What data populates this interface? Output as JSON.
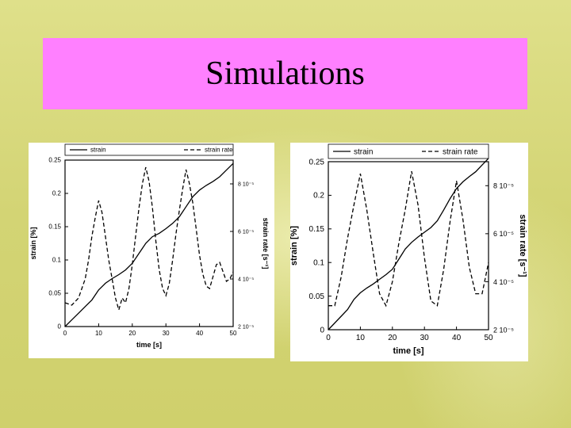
{
  "title": "Simulations",
  "chart_data": [
    {
      "type": "line",
      "title": "",
      "xlabel": "time [s]",
      "ylabel": "strain [%]",
      "y2label": "strain rate [s⁻¹]",
      "xlim": [
        0,
        50
      ],
      "ylim": [
        0,
        0.25
      ],
      "y2lim": [
        2e-05,
        9e-05
      ],
      "x_ticks": [
        "0",
        "10",
        "20",
        "30",
        "40",
        "50"
      ],
      "y_ticks": [
        "0",
        "0.05",
        "0.1",
        "0.15",
        "0.2",
        "0.25"
      ],
      "y2_ticks": [
        "2 10⁻⁵",
        "4 10⁻⁵",
        "6 10⁻⁵",
        "8 10⁻⁵"
      ],
      "legend_position": "top",
      "grid": false,
      "series": [
        {
          "name": "strain",
          "axis": "left",
          "style": "solid",
          "x": [
            0,
            2,
            4,
            6,
            8,
            10,
            12,
            14,
            16,
            18,
            20,
            22,
            24,
            26,
            28,
            30,
            32,
            34,
            36,
            38,
            40,
            42,
            44,
            46,
            48,
            50
          ],
          "values": [
            0.0,
            0.01,
            0.02,
            0.03,
            0.04,
            0.055,
            0.065,
            0.072,
            0.078,
            0.085,
            0.095,
            0.11,
            0.125,
            0.135,
            0.14,
            0.147,
            0.155,
            0.165,
            0.18,
            0.195,
            0.205,
            0.212,
            0.218,
            0.225,
            0.235,
            0.245
          ]
        },
        {
          "name": "strain rate",
          "axis": "right",
          "style": "dashed",
          "x": [
            0,
            2,
            4,
            6,
            7,
            8,
            9,
            10,
            11,
            12,
            13,
            14,
            15,
            16,
            17,
            18,
            19,
            20,
            21,
            22,
            23,
            24,
            25,
            26,
            27,
            28,
            29,
            30,
            31,
            32,
            33,
            34,
            35,
            36,
            37,
            38,
            39,
            40,
            41,
            42,
            43,
            44,
            45,
            46,
            47,
            48,
            49,
            50
          ],
          "values": [
            3e-05,
            2.9e-05,
            3.2e-05,
            4e-05,
            4.8e-05,
            5.8e-05,
            6.6e-05,
            7.3e-05,
            6.8e-05,
            5.8e-05,
            4.8e-05,
            4e-05,
            3.2e-05,
            2.7e-05,
            3.2e-05,
            3e-05,
            3.6e-05,
            4.6e-05,
            5.8e-05,
            7e-05,
            8e-05,
            8.7e-05,
            8.1e-05,
            7e-05,
            5.6e-05,
            4.4e-05,
            3.6e-05,
            3.3e-05,
            3.8e-05,
            4.8e-05,
            5.9e-05,
            6.9e-05,
            7.8e-05,
            8.6e-05,
            8e-05,
            7.2e-05,
            6.1e-05,
            5e-05,
            4.2e-05,
            3.7e-05,
            3.6e-05,
            4.1e-05,
            4.6e-05,
            4.7e-05,
            4.3e-05,
            3.9e-05,
            4e-05,
            4.3e-05
          ]
        }
      ]
    },
    {
      "type": "line",
      "title": "",
      "xlabel": "time [s]",
      "ylabel": "strain [%]",
      "y2label": "strain rate [s⁻¹]",
      "xlim": [
        0,
        50
      ],
      "ylim": [
        0,
        0.25
      ],
      "y2lim": [
        2e-05,
        9e-05
      ],
      "x_ticks": [
        "0",
        "10",
        "20",
        "30",
        "40",
        "50"
      ],
      "y_ticks": [
        "0",
        "0.05",
        "0.1",
        "0.15",
        "0.2",
        "0.25"
      ],
      "y2_ticks": [
        "2 10⁻⁵",
        "4 10⁻⁵",
        "6 10⁻⁵",
        "8 10⁻⁵"
      ],
      "legend_position": "top",
      "grid": false,
      "series": [
        {
          "name": "strain",
          "axis": "left",
          "style": "solid",
          "x": [
            0,
            2,
            4,
            6,
            8,
            10,
            12,
            14,
            16,
            18,
            20,
            22,
            24,
            26,
            28,
            30,
            32,
            34,
            36,
            38,
            40,
            42,
            44,
            46,
            48,
            50
          ],
          "values": [
            0.0,
            0.01,
            0.02,
            0.03,
            0.045,
            0.055,
            0.062,
            0.068,
            0.075,
            0.082,
            0.09,
            0.105,
            0.12,
            0.13,
            0.138,
            0.145,
            0.152,
            0.162,
            0.178,
            0.195,
            0.21,
            0.22,
            0.228,
            0.235,
            0.245,
            0.255
          ]
        },
        {
          "name": "strain rate",
          "axis": "right",
          "style": "dashed",
          "x": [
            0,
            2,
            4,
            6,
            8,
            10,
            12,
            14,
            16,
            18,
            20,
            22,
            24,
            26,
            28,
            30,
            32,
            34,
            36,
            38,
            40,
            42,
            44,
            46,
            48,
            50
          ],
          "values": [
            3e-05,
            3e-05,
            4.2e-05,
            5.8e-05,
            7.2e-05,
            8.5e-05,
            7e-05,
            5.2e-05,
            3.5e-05,
            3e-05,
            4e-05,
            5.6e-05,
            7e-05,
            8.6e-05,
            7.2e-05,
            5e-05,
            3.2e-05,
            3e-05,
            4.5e-05,
            6.5e-05,
            8.2e-05,
            6.6e-05,
            4.6e-05,
            3.5e-05,
            3.5e-05,
            4.8e-05
          ]
        }
      ]
    }
  ]
}
